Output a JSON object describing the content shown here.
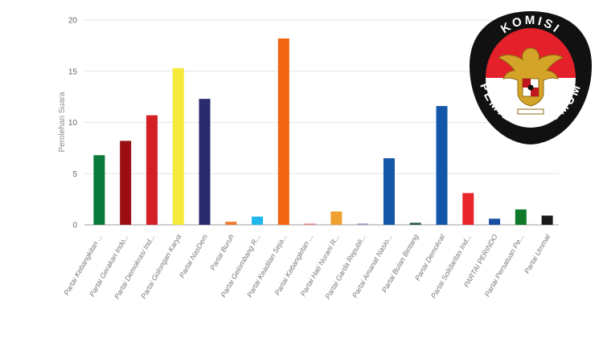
{
  "chart_data": {
    "type": "bar",
    "title": "",
    "xlabel": "",
    "ylabel": "Perolehan Suara",
    "ylim": [
      0,
      20
    ],
    "yticks": [
      0,
      5,
      10,
      15,
      20
    ],
    "grid": true,
    "legend": "none",
    "categories": [
      "Partai Kebangkitan ...",
      "Partai Gerakan Indo...",
      "Partai Demokrasi Ind...",
      "Partai Golongan Karya",
      "Partai NasDem",
      "Partai Buruh",
      "Partai Gelombang R...",
      "Partai Keadilan Seja...",
      "Partai Kebangkitan ...",
      "Partai Hati Nurani R...",
      "Partai Garda Republi...",
      "Partai Amanat Nasio...",
      "Partai Bulan Bintang",
      "Partai Demokrat",
      "Partai Solidaritas Ind...",
      "PARTAI PERINDO",
      "Partai Persatuan Pe...",
      "Partai Ummat"
    ],
    "values": [
      6.8,
      8.2,
      10.7,
      15.3,
      12.3,
      0.3,
      0.8,
      18.2,
      0.1,
      1.3,
      0.1,
      6.5,
      0.2,
      11.6,
      3.1,
      0.6,
      1.5,
      0.9
    ],
    "colors": [
      "#0a7a3c",
      "#9b0f12",
      "#d32027",
      "#f5ea3c",
      "#2a2a6e",
      "#f07a2e",
      "#1eb8ee",
      "#f36410",
      "#e08080",
      "#f0a030",
      "#9090c0",
      "#1457a8",
      "#2a5a4a",
      "#1457a8",
      "#e8262c",
      "#1a4fa0",
      "#0f7a2a",
      "#1a1a1a"
    ]
  },
  "logo": {
    "text_top": "KOMISI",
    "text_bottom": "PEMILIHAN UMUM",
    "colors": {
      "ring": "#111111",
      "top": "#e4202a",
      "bottom": "#ffffff",
      "emblem": "#d4a428"
    }
  }
}
